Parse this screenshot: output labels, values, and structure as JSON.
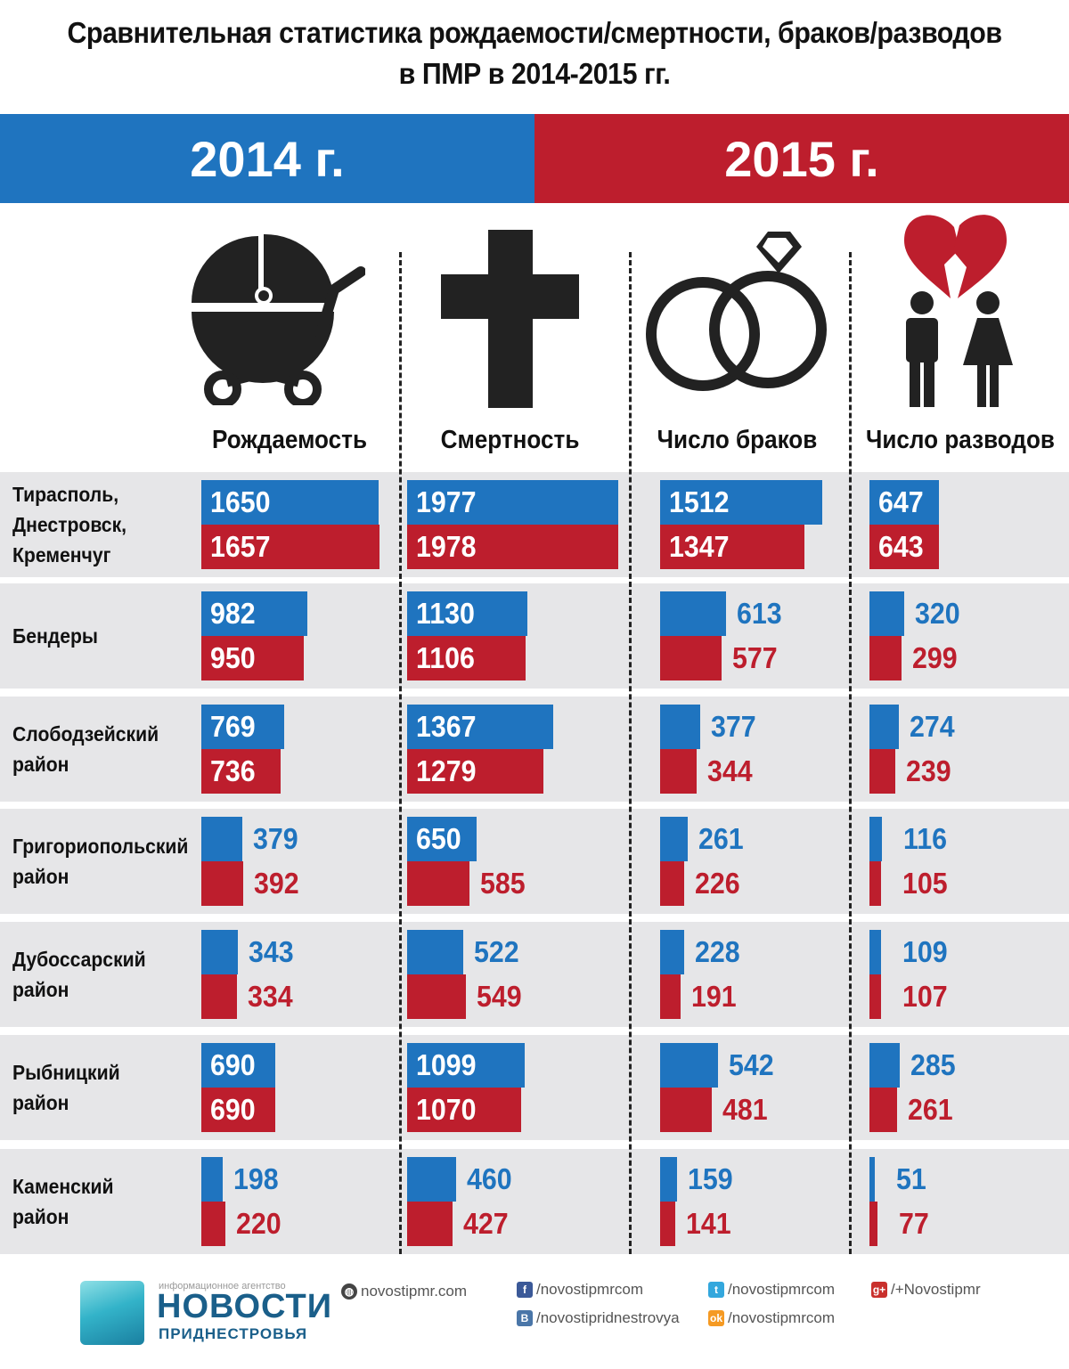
{
  "title_line1": "Сравнительная статистика рождаемости/смертности, браков/разводов",
  "title_line2": "в ПМР в 2014-2015 гг.",
  "year_2014": "2014 г.",
  "year_2015": "2015 г.",
  "columns": [
    {
      "label": "Рождаемость",
      "icon": "baby-stroller-icon"
    },
    {
      "label": "Смертность",
      "icon": "cross-icon"
    },
    {
      "label": "Число браков",
      "icon": "wedding-rings-icon"
    },
    {
      "label": "Число разводов",
      "icon": "broken-heart-couple-icon"
    }
  ],
  "colors": {
    "y2014": "#1f74bf",
    "y2015": "#bd1e2d",
    "row_bg": "#e6e6e8"
  },
  "chart_data": {
    "type": "bar",
    "series": [
      {
        "name": "2014 г."
      },
      {
        "name": "2015 г."
      }
    ],
    "rows": [
      {
        "label_lines": [
          "Тирасполь,",
          "Днестровск,",
          "Кременчуг"
        ],
        "values": [
          [
            1650,
            1657
          ],
          [
            1977,
            1978
          ],
          [
            1512,
            1347
          ],
          [
            647,
            643
          ]
        ]
      },
      {
        "label_lines": [
          "Бендеры"
        ],
        "values": [
          [
            982,
            950
          ],
          [
            1130,
            1106
          ],
          [
            613,
            577
          ],
          [
            320,
            299
          ]
        ]
      },
      {
        "label_lines": [
          "Слободзейский",
          "район"
        ],
        "values": [
          [
            769,
            736
          ],
          [
            1367,
            1279
          ],
          [
            377,
            344
          ],
          [
            274,
            239
          ]
        ]
      },
      {
        "label_lines": [
          "Григориопольский",
          "район"
        ],
        "values": [
          [
            379,
            392
          ],
          [
            650,
            585
          ],
          [
            261,
            226
          ],
          [
            116,
            105
          ]
        ]
      },
      {
        "label_lines": [
          "Дубоссарский",
          "район"
        ],
        "values": [
          [
            343,
            334
          ],
          [
            522,
            549
          ],
          [
            228,
            191
          ],
          [
            109,
            107
          ]
        ]
      },
      {
        "label_lines": [
          "Рыбницкий",
          "район"
        ],
        "values": [
          [
            690,
            690
          ],
          [
            1099,
            1070
          ],
          [
            542,
            481
          ],
          [
            285,
            261
          ]
        ]
      },
      {
        "label_lines": [
          "Каменский",
          "район"
        ],
        "values": [
          [
            198,
            220
          ],
          [
            460,
            427
          ],
          [
            159,
            141
          ],
          [
            51,
            77
          ]
        ]
      }
    ]
  },
  "footer": {
    "logo_small": "информационное агентство",
    "logo_big": "НОВОСТИ",
    "logo_sub": "ПРИДНЕСТРОВЬЯ",
    "links": [
      {
        "icon": "globe-icon",
        "text": "novostipmr.com"
      },
      {
        "icon": "facebook-icon",
        "text": "/novostipmrcom"
      },
      {
        "icon": "twitter-icon",
        "text": "/novostipmrcom"
      },
      {
        "icon": "google-plus-icon",
        "text": "/+Novostipmr"
      },
      {
        "icon": "vkontakte-icon",
        "text": "/novostipridnestrovya"
      },
      {
        "icon": "odnoklassniki-icon",
        "text": "/novostipmrcom"
      }
    ]
  }
}
